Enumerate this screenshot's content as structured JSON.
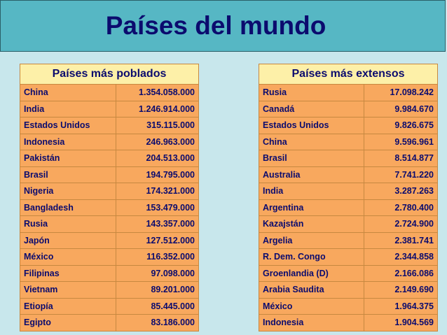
{
  "title": "Países del mundo",
  "populated": {
    "header": "Países más poblados",
    "rows": [
      {
        "country": "China",
        "value": "1.354.058.000"
      },
      {
        "country": "India",
        "value": "1.246.914.000"
      },
      {
        "country": "Estados Unidos",
        "value": "315.115.000"
      },
      {
        "country": "Indonesia",
        "value": "246.963.000"
      },
      {
        "country": "Pakistán",
        "value": "204.513.000"
      },
      {
        "country": "Brasil",
        "value": "194.795.000"
      },
      {
        "country": "Nigeria",
        "value": "174.321.000"
      },
      {
        "country": "Bangladesh",
        "value": "153.479.000"
      },
      {
        "country": "Rusia",
        "value": "143.357.000"
      },
      {
        "country": "Japón",
        "value": "127.512.000"
      },
      {
        "country": "México",
        "value": "116.352.000"
      },
      {
        "country": "Filipinas",
        "value": "97.098.000"
      },
      {
        "country": "Vietnam",
        "value": "89.201.000"
      },
      {
        "country": "Etiopía",
        "value": "85.445.000"
      },
      {
        "country": "Egipto",
        "value": "83.186.000"
      }
    ]
  },
  "extensive": {
    "header": "Países más extensos",
    "rows": [
      {
        "country": "Rusia",
        "value": "17.098.242"
      },
      {
        "country": "Canadá",
        "value": "9.984.670"
      },
      {
        "country": "Estados Unidos",
        "value": "9.826.675"
      },
      {
        "country": "China",
        "value": "9.596.961"
      },
      {
        "country": "Brasil",
        "value": "8.514.877"
      },
      {
        "country": "Australia",
        "value": "7.741.220"
      },
      {
        "country": "India",
        "value": "3.287.263"
      },
      {
        "country": "Argentina",
        "value": "2.780.400"
      },
      {
        "country": "Kazajstán",
        "value": "2.724.900"
      },
      {
        "country": "Argelia",
        "value": "2.381.741"
      },
      {
        "country": "R. Dem. Congo",
        "value": "2.344.858"
      },
      {
        "country": "Groenlandia (D)",
        "value": "2.166.086"
      },
      {
        "country": "Arabia Saudita",
        "value": "2.149.690"
      },
      {
        "country": "México",
        "value": "1.964.375"
      },
      {
        "country": "Indonesia",
        "value": "1.904.569"
      }
    ]
  }
}
